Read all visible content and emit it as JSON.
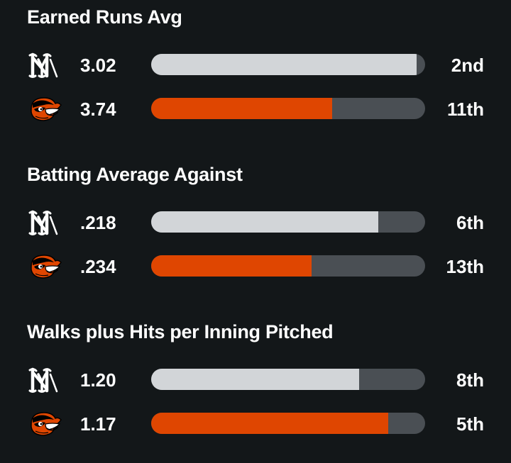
{
  "colors": {
    "background": "#131719",
    "track": "#4a4f54",
    "team_a_bar": "#d2d5d8",
    "team_b_bar": "#df4601",
    "text": "#ffffff"
  },
  "teams": [
    {
      "key": "a",
      "logo_icon": "yankees-logo-icon"
    },
    {
      "key": "b",
      "logo_icon": "orioles-logo-icon"
    }
  ],
  "chart_data": [
    {
      "type": "bar",
      "orientation": "horizontal",
      "title": "Earned Runs Avg",
      "rows": [
        {
          "team": "a",
          "value": "3.02",
          "rank": "2nd",
          "fill": 0.97
        },
        {
          "team": "b",
          "value": "3.74",
          "rank": "11th",
          "fill": 0.66
        }
      ]
    },
    {
      "type": "bar",
      "orientation": "horizontal",
      "title": "Batting Average Against",
      "rows": [
        {
          "team": "a",
          "value": ".218",
          "rank": "6th",
          "fill": 0.83
        },
        {
          "team": "b",
          "value": ".234",
          "rank": "13th",
          "fill": 0.585
        }
      ]
    },
    {
      "type": "bar",
      "orientation": "horizontal",
      "title": "Walks plus Hits per Inning Pitched",
      "rows": [
        {
          "team": "a",
          "value": "1.20",
          "rank": "8th",
          "fill": 0.76
        },
        {
          "team": "b",
          "value": "1.17",
          "rank": "5th",
          "fill": 0.865
        }
      ]
    }
  ]
}
